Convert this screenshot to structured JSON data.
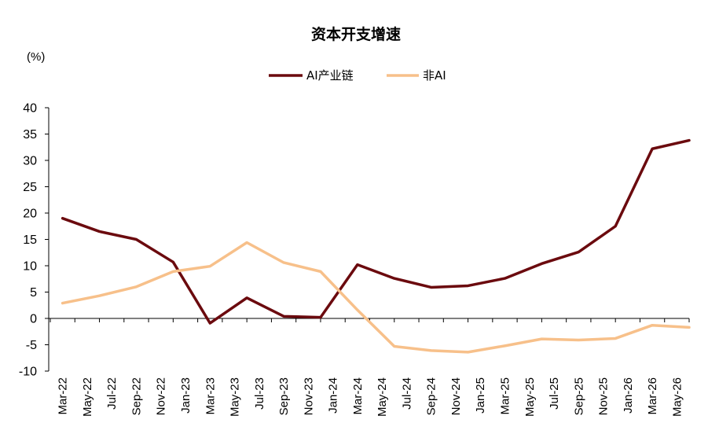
{
  "chart_data": {
    "type": "line",
    "title": "资本开支增速",
    "unit_label": "(%)",
    "xlabel": "",
    "ylabel": "",
    "ylim": [
      -10,
      40
    ],
    "yticks": [
      40,
      35,
      30,
      25,
      20,
      15,
      10,
      5,
      0,
      -5,
      -10
    ],
    "grid": false,
    "legend_position": "top-center",
    "x": [
      "Mar-22",
      "May-22",
      "Jul-22",
      "Sep-22",
      "Nov-22",
      "Jan-23",
      "Mar-23",
      "May-23",
      "Jul-23",
      "Sep-23",
      "Nov-23",
      "Jan-24",
      "Mar-24",
      "May-24",
      "Jul-24",
      "Sep-24",
      "Nov-24",
      "Jan-25",
      "Mar-25",
      "May-25",
      "Jul-25",
      "Sep-25",
      "Nov-25",
      "Jan-26",
      "Mar-26",
      "May-26"
    ],
    "series": [
      {
        "name": "AI产业链",
        "color": "#6b0a0e",
        "points": [
          [
            "Mar-22",
            19.0
          ],
          [
            "Jun-22",
            16.5
          ],
          [
            "Sep-22",
            15.0
          ],
          [
            "Dec-22",
            10.7
          ],
          [
            "Mar-23",
            -0.9
          ],
          [
            "Jun-23",
            3.9
          ],
          [
            "Sep-23",
            0.4
          ],
          [
            "Dec-23",
            0.2
          ],
          [
            "Mar-24",
            10.2
          ],
          [
            "Jun-24",
            7.6
          ],
          [
            "Sep-24",
            5.9
          ],
          [
            "Dec-24",
            6.2
          ],
          [
            "Mar-25",
            7.6
          ],
          [
            "Jun-25",
            10.4
          ],
          [
            "Sep-25",
            12.6
          ],
          [
            "Dec-25",
            17.5
          ],
          [
            "Mar-26",
            32.2
          ],
          [
            "Jun-26",
            33.8
          ]
        ]
      },
      {
        "name": "非AI",
        "color": "#f7c08a",
        "points": [
          [
            "Mar-22",
            2.9
          ],
          [
            "Jun-22",
            4.3
          ],
          [
            "Sep-22",
            6.0
          ],
          [
            "Dec-22",
            8.9
          ],
          [
            "Mar-23",
            9.9
          ],
          [
            "Jun-23",
            14.4
          ],
          [
            "Sep-23",
            10.6
          ],
          [
            "Dec-23",
            8.9
          ],
          [
            "Mar-24",
            1.6
          ],
          [
            "Jun-24",
            -5.3
          ],
          [
            "Sep-24",
            -6.1
          ],
          [
            "Dec-24",
            -6.4
          ],
          [
            "Mar-25",
            -5.2
          ],
          [
            "Jun-25",
            -3.9
          ],
          [
            "Sep-25",
            -4.1
          ],
          [
            "Dec-25",
            -3.8
          ],
          [
            "Mar-26",
            -1.3
          ],
          [
            "Jun-26",
            -1.7
          ]
        ]
      }
    ]
  }
}
